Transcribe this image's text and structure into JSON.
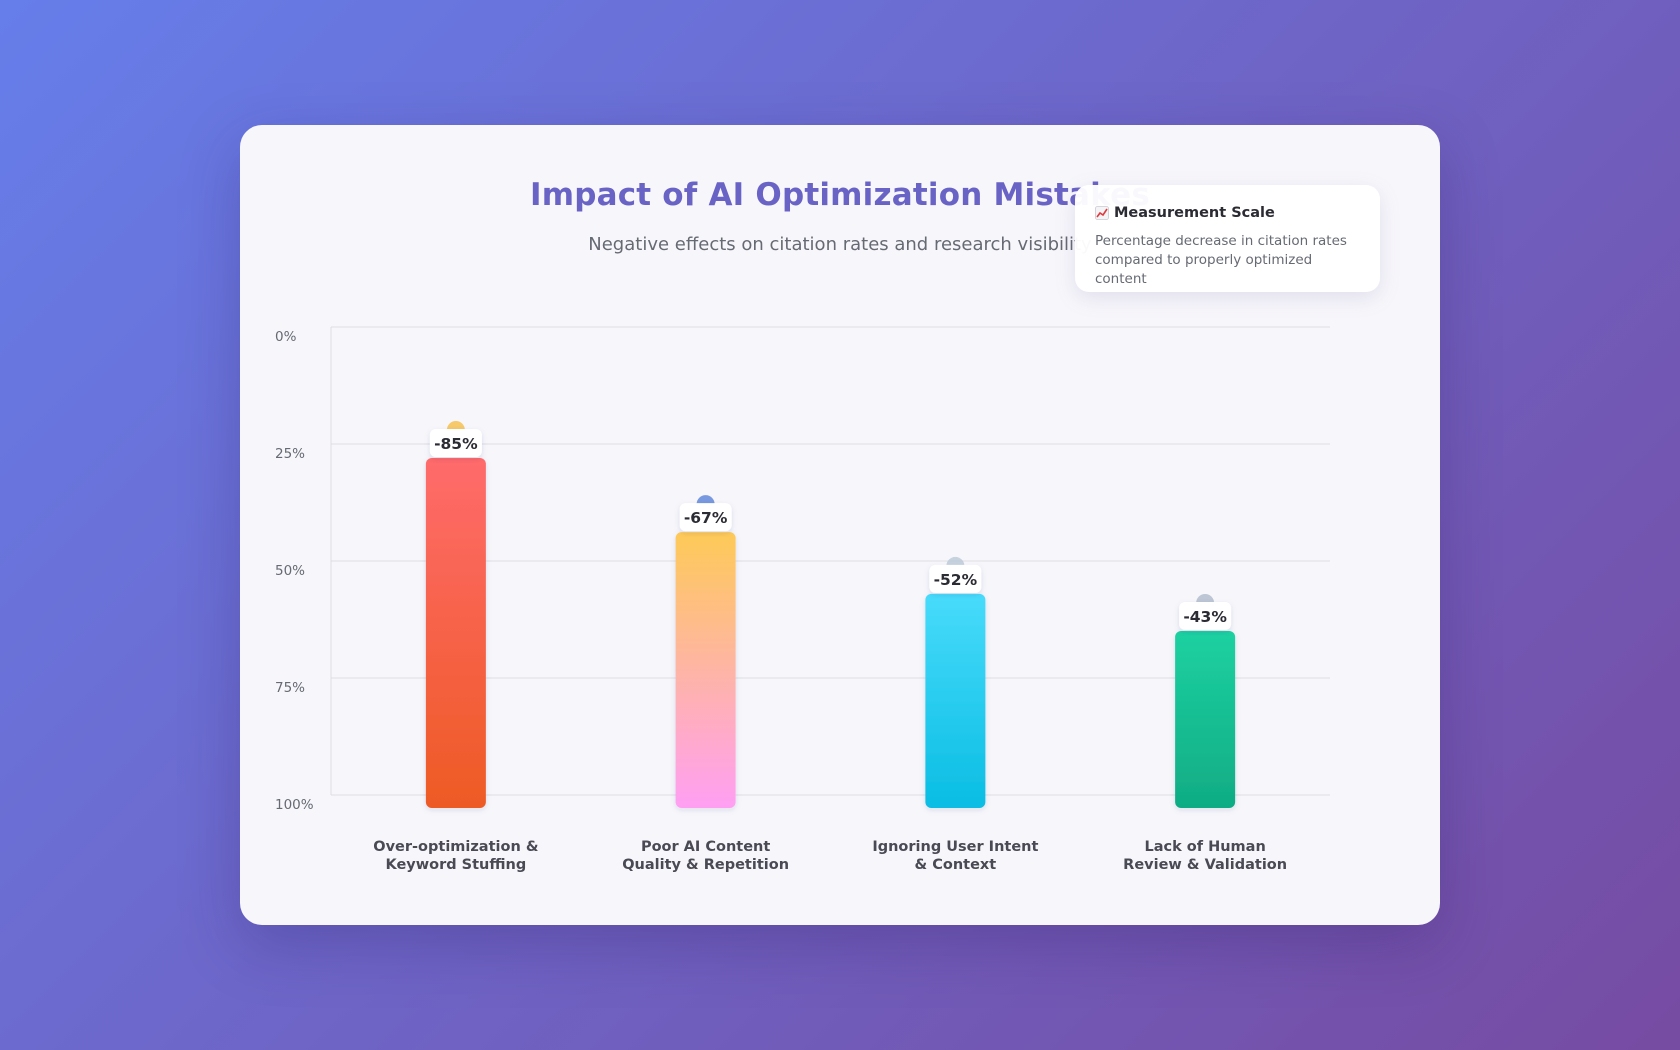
{
  "chart_data": {
    "type": "bar",
    "title": "Impact of AI Optimization Mistakes",
    "subtitle": "Negative effects on citation rates and research visibility",
    "y_ticks": [
      "0%",
      "25%",
      "50%",
      "75%",
      "100%"
    ],
    "ylim": [
      0,
      100
    ],
    "categories": [
      [
        "Over-optimization &",
        "Keyword Stuffing"
      ],
      [
        "Poor AI Content",
        "Quality & Repetition"
      ],
      [
        "Ignoring User Intent",
        "& Context"
      ],
      [
        "Lack of Human",
        "Review & Validation"
      ]
    ],
    "values": [
      -85,
      -67,
      -52,
      -43
    ],
    "value_labels": [
      "-85%",
      "-67%",
      "-52%",
      "-43%"
    ],
    "colors": [
      [
        "#ff6b6b",
        "#ee5a24"
      ],
      [
        "#feca57",
        "#ff9ff3"
      ],
      [
        "#48dbfb",
        "#0abde3"
      ],
      [
        "#1dd1a1",
        "#10ac84"
      ]
    ],
    "bar_icons": [
      "warning-icon",
      "robot-icon",
      "target-icon",
      "magnifier-icon"
    ]
  },
  "scale_box": {
    "title": "Measurement Scale",
    "icon": "chart-increasing-icon",
    "text_line1": "Percentage decrease in citation rates",
    "text_line2": "compared to properly optimized content"
  }
}
